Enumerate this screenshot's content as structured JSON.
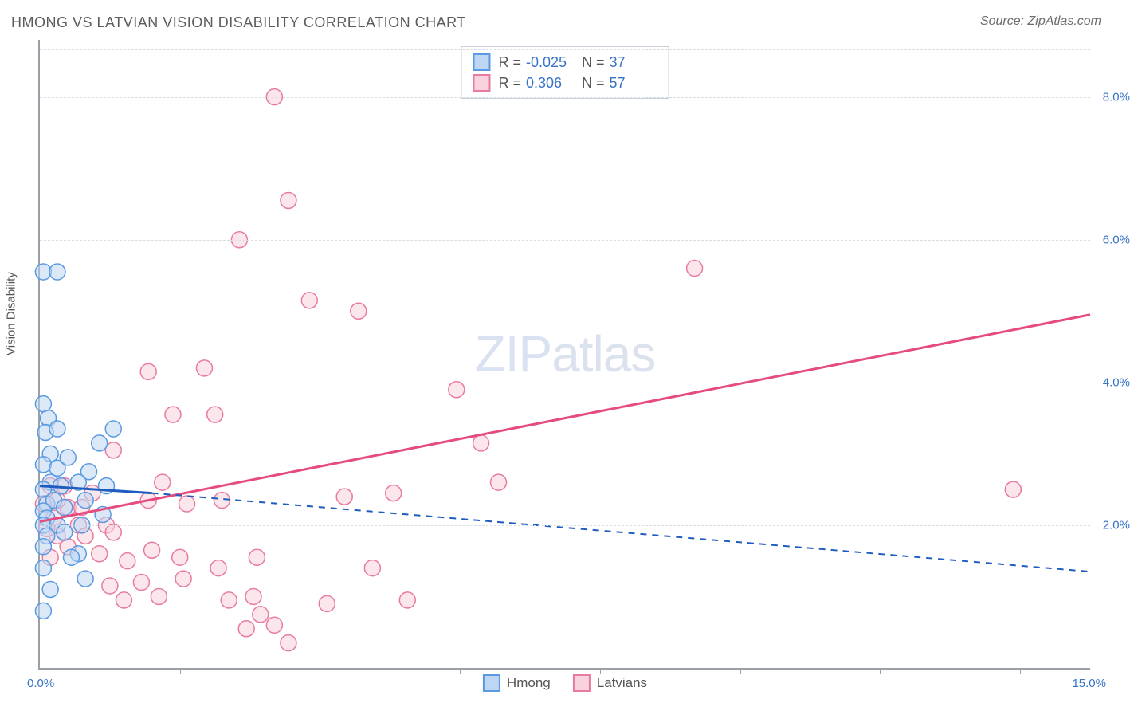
{
  "title": "HMONG VS LATVIAN VISION DISABILITY CORRELATION CHART",
  "source": "Source: ZipAtlas.com",
  "y_axis_label": "Vision Disability",
  "watermark_bold": "ZIP",
  "watermark_thin": "atlas",
  "colors": {
    "hmong_fill": "#bcd6f3",
    "hmong_stroke": "#5a9ae0",
    "hmong_line": "#1f5cbf",
    "latvian_fill": "#f8d2dc",
    "latvian_stroke": "#e87b9f",
    "latvian_line": "#e64b80",
    "grid": "#d9dee4",
    "axis": "#9aa0a6",
    "tick_text": "#3773c8",
    "text": "#5c5c5c"
  },
  "chart": {
    "type": "scatter",
    "xlim": [
      0,
      15
    ],
    "ylim": [
      0,
      8.8
    ],
    "y_ticks": [
      2.0,
      4.0,
      6.0,
      8.0
    ],
    "y_tick_labels": [
      "2.0%",
      "4.0%",
      "6.0%",
      "8.0%"
    ],
    "x_ticks": [
      2,
      4,
      6,
      8,
      10,
      12,
      14
    ],
    "x_origin_label": "0.0%",
    "x_max_label": "15.0%",
    "marker_radius": 10,
    "marker_opacity": 0.55,
    "line_width_solid": 3,
    "line_width_dash": 2
  },
  "stats": {
    "series1": {
      "R_label": "R =",
      "R": "-0.025",
      "N_label": "N =",
      "N": "37"
    },
    "series2": {
      "R_label": "R =",
      "R": "0.306",
      "N_label": "N =",
      "N": "57"
    }
  },
  "legend": {
    "hmong": "Hmong",
    "latvians": "Latvians"
  },
  "trend_lines": {
    "hmong_solid": {
      "x1": 0.0,
      "y1": 2.55,
      "x2": 1.6,
      "y2": 2.45
    },
    "hmong_dashed": {
      "x1": 1.6,
      "y1": 2.45,
      "x2": 15.0,
      "y2": 1.35
    },
    "latvian_solid": {
      "x1": 0.0,
      "y1": 2.05,
      "x2": 15.0,
      "y2": 4.95
    }
  },
  "series_hmong": [
    [
      0.05,
      5.55
    ],
    [
      0.25,
      5.55
    ],
    [
      0.05,
      3.7
    ],
    [
      0.12,
      3.5
    ],
    [
      0.08,
      3.3
    ],
    [
      0.25,
      3.35
    ],
    [
      0.15,
      3.0
    ],
    [
      0.05,
      2.85
    ],
    [
      0.25,
      2.8
    ],
    [
      0.15,
      2.6
    ],
    [
      0.05,
      2.5
    ],
    [
      0.3,
      2.55
    ],
    [
      0.1,
      2.3
    ],
    [
      0.2,
      2.35
    ],
    [
      0.05,
      2.2
    ],
    [
      0.35,
      2.25
    ],
    [
      0.1,
      2.1
    ],
    [
      0.05,
      2.0
    ],
    [
      0.25,
      2.0
    ],
    [
      0.1,
      1.85
    ],
    [
      0.35,
      1.9
    ],
    [
      0.05,
      1.7
    ],
    [
      1.05,
      3.35
    ],
    [
      0.85,
      3.15
    ],
    [
      0.7,
      2.75
    ],
    [
      0.65,
      2.35
    ],
    [
      0.9,
      2.15
    ],
    [
      0.6,
      2.0
    ],
    [
      0.55,
      1.6
    ],
    [
      0.45,
      1.55
    ],
    [
      0.95,
      2.55
    ],
    [
      0.65,
      1.25
    ],
    [
      0.05,
      1.4
    ],
    [
      0.15,
      1.1
    ],
    [
      0.05,
      0.8
    ],
    [
      0.4,
      2.95
    ],
    [
      0.55,
      2.6
    ]
  ],
  "series_latvian": [
    [
      3.35,
      8.0
    ],
    [
      3.55,
      6.55
    ],
    [
      2.85,
      6.0
    ],
    [
      3.85,
      5.15
    ],
    [
      4.55,
      5.0
    ],
    [
      5.95,
      3.9
    ],
    [
      9.35,
      5.6
    ],
    [
      6.3,
      3.15
    ],
    [
      5.05,
      2.45
    ],
    [
      4.35,
      2.4
    ],
    [
      2.35,
      4.2
    ],
    [
      1.55,
      4.15
    ],
    [
      1.9,
      3.55
    ],
    [
      2.5,
      3.55
    ],
    [
      1.05,
      3.05
    ],
    [
      1.75,
      2.6
    ],
    [
      1.55,
      2.35
    ],
    [
      2.1,
      2.3
    ],
    [
      2.6,
      2.35
    ],
    [
      0.75,
      2.45
    ],
    [
      0.4,
      2.25
    ],
    [
      0.2,
      2.1
    ],
    [
      0.55,
      2.0
    ],
    [
      0.95,
      2.0
    ],
    [
      0.25,
      1.85
    ],
    [
      0.65,
      1.85
    ],
    [
      1.05,
      1.9
    ],
    [
      0.4,
      1.7
    ],
    [
      0.15,
      1.55
    ],
    [
      0.85,
      1.6
    ],
    [
      1.25,
      1.5
    ],
    [
      1.6,
      1.65
    ],
    [
      2.0,
      1.55
    ],
    [
      2.05,
      1.25
    ],
    [
      1.45,
      1.2
    ],
    [
      1.0,
      1.15
    ],
    [
      2.55,
      1.4
    ],
    [
      3.1,
      1.55
    ],
    [
      2.7,
      0.95
    ],
    [
      3.15,
      0.75
    ],
    [
      2.95,
      0.55
    ],
    [
      3.35,
      0.6
    ],
    [
      3.55,
      0.35
    ],
    [
      3.05,
      1.0
    ],
    [
      4.1,
      0.9
    ],
    [
      5.25,
      0.95
    ],
    [
      6.55,
      2.6
    ],
    [
      1.2,
      0.95
    ],
    [
      1.7,
      1.0
    ],
    [
      0.6,
      2.25
    ],
    [
      0.25,
      2.35
    ],
    [
      0.15,
      2.55
    ],
    [
      0.05,
      2.3
    ],
    [
      0.35,
      2.55
    ],
    [
      0.1,
      1.95
    ],
    [
      13.9,
      2.5
    ],
    [
      4.75,
      1.4
    ]
  ]
}
